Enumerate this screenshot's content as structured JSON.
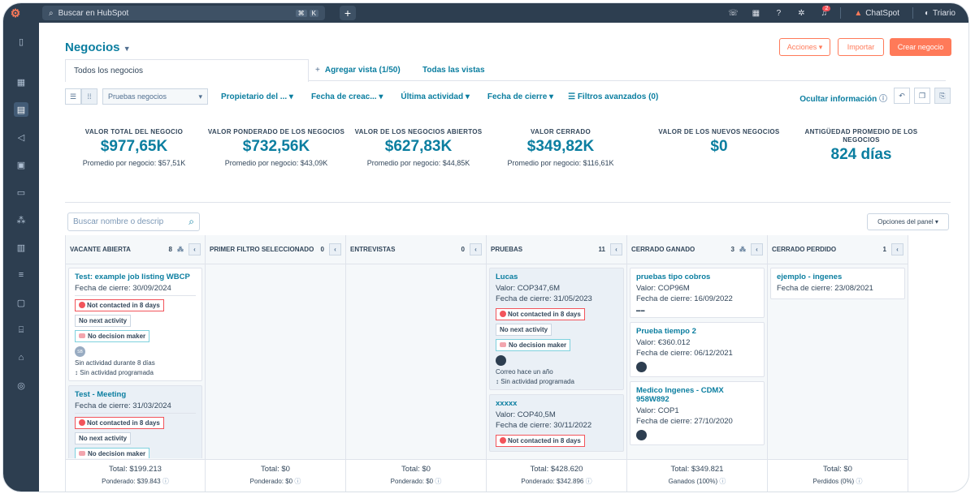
{
  "topbar": {
    "search_placeholder": "Buscar en HubSpot",
    "kbd1": "⌘",
    "kbd2": "K",
    "notification_count": "2",
    "chatspot": "ChatSpot",
    "user": "Triario"
  },
  "page": {
    "title": "Negocios",
    "actions_label": "Acciones",
    "import_label": "Importar",
    "create_label": "Crear negocio"
  },
  "tabs": {
    "all_deals": "Todos los negocios",
    "add_view": "Agregar vista (1/50)",
    "all_views": "Todas las vistas"
  },
  "filters": {
    "pipeline": "Pruebas negocios",
    "owner": "Propietario del ...",
    "created": "Fecha de creac...",
    "activity": "Última actividad",
    "close": "Fecha de cierre",
    "advanced": "Filtros avanzados (0)",
    "hide_info": "Ocultar información"
  },
  "stats": [
    {
      "label": "VALOR TOTAL DEL NEGOCIO",
      "value": "$977,65K",
      "avg": "Promedio por negocio: $57,51K"
    },
    {
      "label": "VALOR PONDERADO DE LOS NEGOCIOS",
      "value": "$732,56K",
      "avg": "Promedio por negocio: $43,09K"
    },
    {
      "label": "VALOR DE LOS NEGOCIOS ABIERTOS",
      "value": "$627,83K",
      "avg": "Promedio por negocio: $44,85K"
    },
    {
      "label": "VALOR CERRADO",
      "value": "$349,82K",
      "avg": "Promedio por negocio: $116,61K"
    },
    {
      "label": "VALOR DE LOS NUEVOS NEGOCIOS",
      "value": "$0",
      "avg": ""
    },
    {
      "label": "ANTIGÜEDAD PROMEDIO DE LOS NEGOCIOS",
      "value": "824 días",
      "avg": ""
    }
  ],
  "board": {
    "search_placeholder": "Buscar nombre o descrip",
    "panel_options": "Opciones del panel",
    "columns": [
      {
        "name": "VACANTE ABIERTA",
        "count": "8",
        "total": "Total: $199.213",
        "sub": "Ponderado: $39.843"
      },
      {
        "name": "PRIMER FILTRO SELECCIONADO",
        "count": "0",
        "total": "Total: $0",
        "sub": "Ponderado: $0"
      },
      {
        "name": "ENTREVISTAS",
        "count": "0",
        "total": "Total: $0",
        "sub": "Ponderado: $0"
      },
      {
        "name": "PRUEBAS",
        "count": "11",
        "total": "Total: $428.620",
        "sub": "Ponderado: $342.896"
      },
      {
        "name": "CERRADO GANADO",
        "count": "3",
        "total": "Total: $349.821",
        "sub": "Ganados (100%)"
      },
      {
        "name": "CERRADO PERDIDO",
        "count": "1",
        "total": "Total: $0",
        "sub": "Perdidos (0%)"
      }
    ],
    "cards": {
      "c1": {
        "name": "Test: example job listing WBCP",
        "close": "Fecha de cierre: 30/09/2024",
        "tag1": "Not contacted in 8 days",
        "tag2": "No next activity",
        "tag3": "No decision maker",
        "avatar": "SB",
        "act1": "Sin actividad durante 8 días",
        "act2": "↕ Sin actividad programada"
      },
      "c2": {
        "name": "Test - Meeting",
        "close": "Fecha de cierre: 31/03/2024",
        "tag1": "Not contacted in 8 days",
        "tag2": "No next activity",
        "tag3": "No decision maker"
      },
      "c3": {
        "name": "Lucas",
        "value": "Valor: COP347,6M",
        "close": "Fecha de cierre: 31/05/2023",
        "tag1": "Not contacted in 8 days",
        "tag2": "No next activity",
        "tag3": "No decision maker",
        "act1": "Correo hace un año",
        "act2": "↕ Sin actividad programada"
      },
      "c4": {
        "name": "xxxxx",
        "value": "Valor: COP40,5M",
        "close": "Fecha de cierre: 30/11/2022",
        "tag1": "Not contacted in 8 days"
      },
      "c5": {
        "name": "pruebas tipo cobros",
        "value": "Valor: COP96M",
        "close": "Fecha de cierre: 16/09/2022"
      },
      "c6": {
        "name": "Prueba tiempo 2",
        "value": "Valor: €360.012",
        "close": "Fecha de cierre: 06/12/2021"
      },
      "c7": {
        "name": "Medico Ingenes - CDMX 958W892",
        "value": "Valor: COP1",
        "close": "Fecha de cierre: 27/10/2020"
      },
      "c8": {
        "name": "ejemplo - ingenes",
        "close": "Fecha de cierre: 23/08/2021"
      }
    }
  }
}
